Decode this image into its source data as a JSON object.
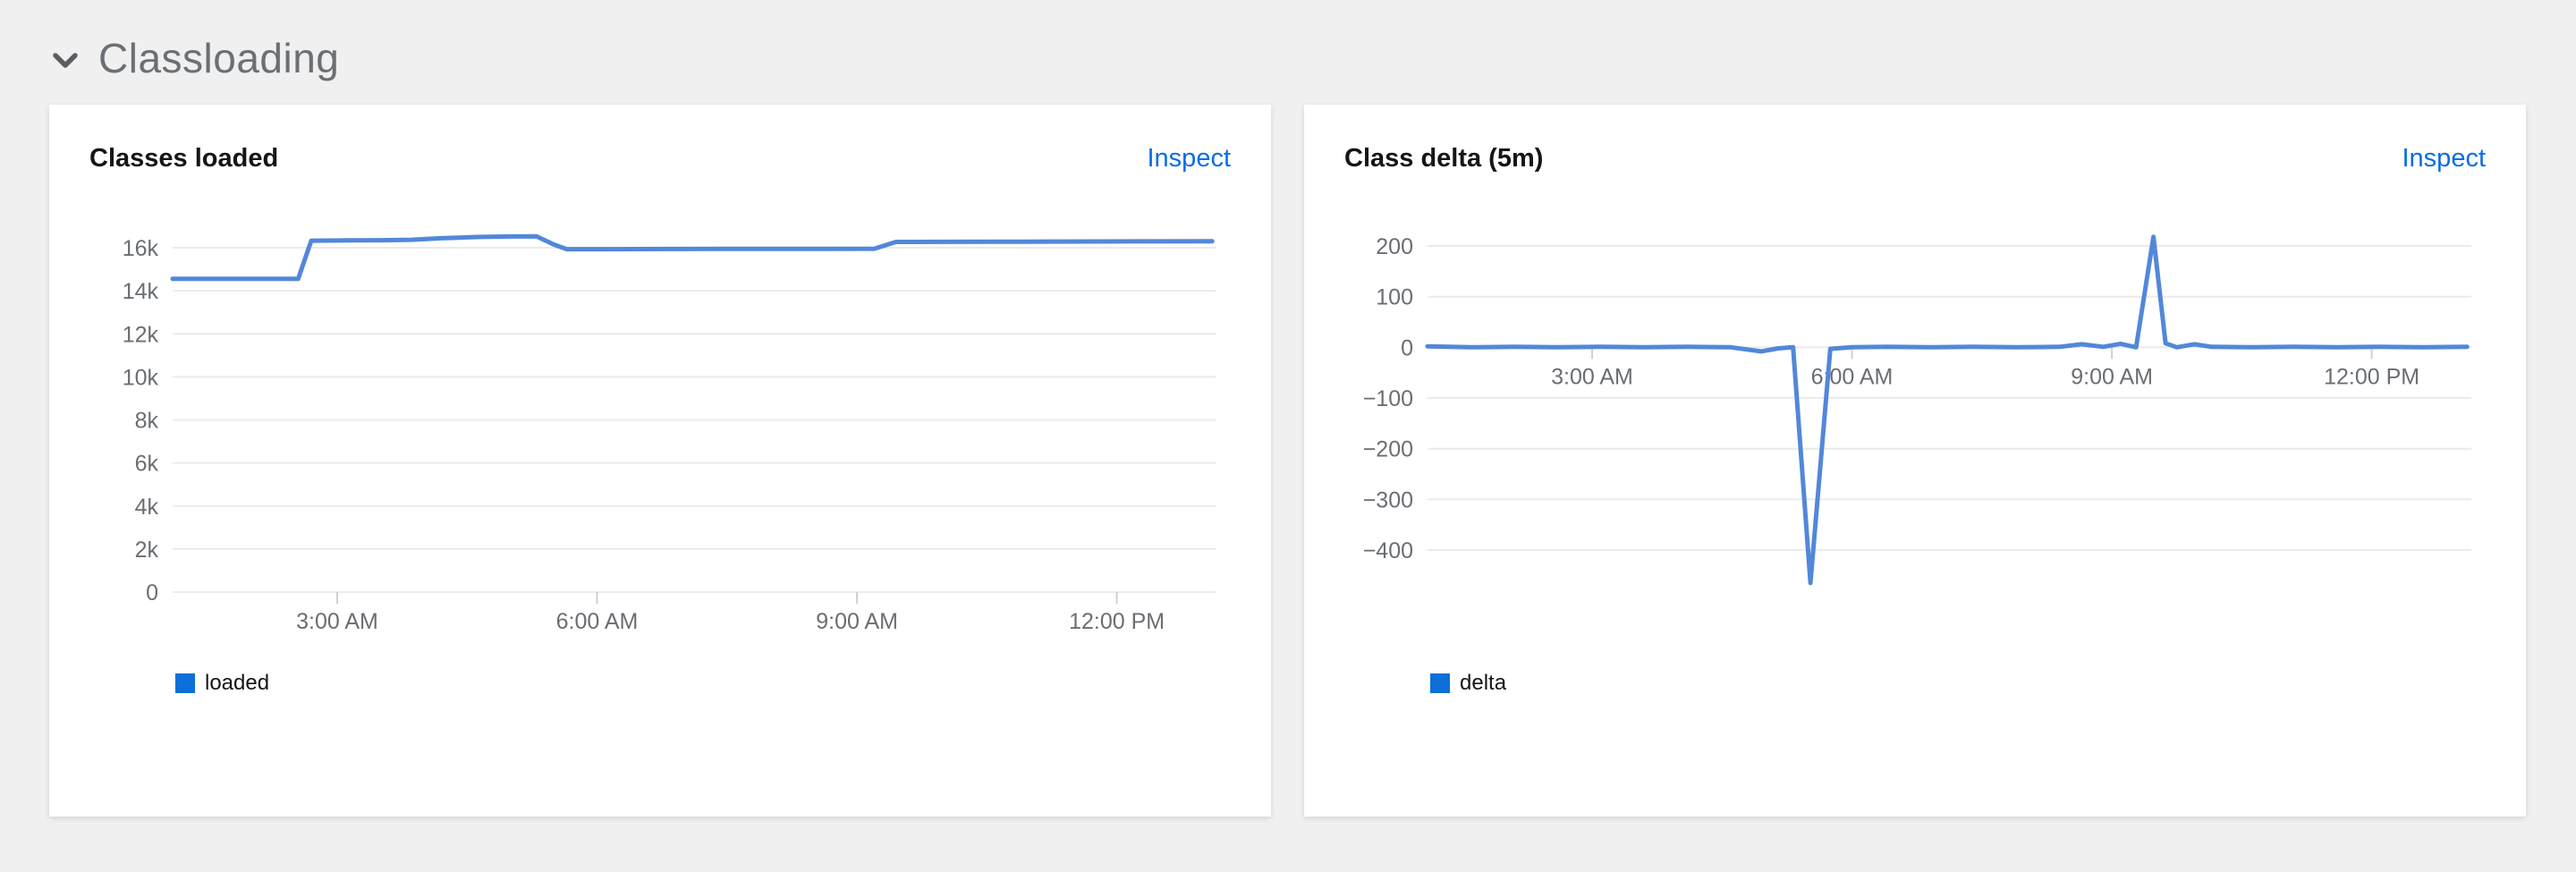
{
  "theme": {
    "page_background": "#f0f0f0",
    "card_background": "#ffffff",
    "link_color": "#0b6ce4",
    "section_title_color": "#6a7075",
    "axis_label_color": "#6a6e73",
    "gridline_color": "#ebebeb",
    "tick_color": "#cfd0d2"
  },
  "section": {
    "title": "Classloading",
    "collapse_icon": "chevron-down-icon",
    "expanded": true
  },
  "cards": [
    {
      "title": "Classes loaded",
      "action": "Inspect",
      "legend": [
        {
          "label": "loaded",
          "color": "#0d6fd8"
        }
      ],
      "chart_data": {
        "type": "line",
        "title": "Classes loaded",
        "xlabel": "",
        "ylabel": "",
        "grid": true,
        "legend_position": "bottom-left",
        "line_color": "#5287db",
        "grid_color": "#ebebeb",
        "axis_color": "#6a6e73",
        "x_unit": "hour-of-day",
        "x_domain": [
          1.1,
          13.15
        ],
        "y_domain": [
          0,
          16000
        ],
        "x_ticks": [
          {
            "h": 3,
            "label": "3:00 AM"
          },
          {
            "h": 6,
            "label": "6:00 AM"
          },
          {
            "h": 9,
            "label": "9:00 AM"
          },
          {
            "h": 12,
            "label": "12:00 PM"
          }
        ],
        "y_ticks": [
          {
            "v": 16000,
            "label": "16k"
          },
          {
            "v": 14000,
            "label": "14k"
          },
          {
            "v": 12000,
            "label": "12k"
          },
          {
            "v": 10000,
            "label": "10k"
          },
          {
            "v": 8000,
            "label": "8k"
          },
          {
            "v": 6000,
            "label": "6k"
          },
          {
            "v": 4000,
            "label": "4k"
          },
          {
            "v": 2000,
            "label": "2k"
          },
          {
            "v": 0,
            "label": "0"
          }
        ],
        "axis_y": 0,
        "series": [
          {
            "name": "loaded",
            "points": [
              [
                1.1,
                14560
              ],
              [
                1.6,
                14560
              ],
              [
                2.1,
                14560
              ],
              [
                2.55,
                14560
              ],
              [
                2.7,
                16330
              ],
              [
                3.1,
                16340
              ],
              [
                3.5,
                16350
              ],
              [
                3.85,
                16370
              ],
              [
                4.2,
                16440
              ],
              [
                4.6,
                16500
              ],
              [
                5.0,
                16525
              ],
              [
                5.3,
                16530
              ],
              [
                5.5,
                16150
              ],
              [
                5.65,
                15935
              ],
              [
                6.2,
                15935
              ],
              [
                6.8,
                15940
              ],
              [
                7.4,
                15945
              ],
              [
                8.0,
                15950
              ],
              [
                8.6,
                15950
              ],
              [
                9.2,
                15955
              ],
              [
                9.45,
                16270
              ],
              [
                10.0,
                16275
              ],
              [
                10.6,
                16280
              ],
              [
                11.2,
                16285
              ],
              [
                11.8,
                16290
              ],
              [
                12.4,
                16295
              ],
              [
                13.1,
                16300
              ]
            ]
          }
        ]
      }
    },
    {
      "title": "Class delta (5m)",
      "action": "Inspect",
      "legend": [
        {
          "label": "delta",
          "color": "#0d6fd8"
        }
      ],
      "chart_data": {
        "type": "line",
        "title": "Class delta (5m)",
        "xlabel": "",
        "ylabel": "",
        "grid": true,
        "legend_position": "bottom-left",
        "line_color": "#5287db",
        "grid_color": "#ebebeb",
        "axis_color": "#6a6e73",
        "x_unit": "hour-of-day",
        "x_domain": [
          1.1,
          13.15
        ],
        "y_domain": [
          -400,
          200
        ],
        "x_ticks": [
          {
            "h": 3,
            "label": "3:00 AM"
          },
          {
            "h": 6,
            "label": "6:00 AM"
          },
          {
            "h": 9,
            "label": "9:00 AM"
          },
          {
            "h": 12,
            "label": "12:00 PM"
          }
        ],
        "y_ticks": [
          {
            "v": 200,
            "label": "200"
          },
          {
            "v": 100,
            "label": "100"
          },
          {
            "v": 0,
            "label": "0"
          },
          {
            "v": -100,
            "label": "−100"
          },
          {
            "v": -200,
            "label": "−200"
          },
          {
            "v": -300,
            "label": "−300"
          },
          {
            "v": -400,
            "label": "−400"
          }
        ],
        "axis_y": 0,
        "series": [
          {
            "name": "delta",
            "points": [
              [
                1.1,
                2
              ],
              [
                1.6,
                0
              ],
              [
                2.1,
                1
              ],
              [
                2.6,
                0
              ],
              [
                3.1,
                1
              ],
              [
                3.6,
                0
              ],
              [
                4.1,
                1
              ],
              [
                4.6,
                0
              ],
              [
                4.95,
                -8
              ],
              [
                5.15,
                -2
              ],
              [
                5.32,
                0
              ],
              [
                5.52,
                -465
              ],
              [
                5.75,
                -3
              ],
              [
                6.0,
                0
              ],
              [
                6.4,
                1
              ],
              [
                6.9,
                0
              ],
              [
                7.4,
                1
              ],
              [
                7.9,
                0
              ],
              [
                8.4,
                1
              ],
              [
                8.65,
                6
              ],
              [
                8.9,
                1
              ],
              [
                9.1,
                7
              ],
              [
                9.28,
                0
              ],
              [
                9.48,
                218
              ],
              [
                9.62,
                8
              ],
              [
                9.75,
                0
              ],
              [
                9.95,
                6
              ],
              [
                10.15,
                1
              ],
              [
                10.6,
                0
              ],
              [
                11.1,
                1
              ],
              [
                11.6,
                0
              ],
              [
                12.1,
                1
              ],
              [
                12.6,
                0
              ],
              [
                13.1,
                1
              ]
            ]
          }
        ]
      }
    }
  ]
}
